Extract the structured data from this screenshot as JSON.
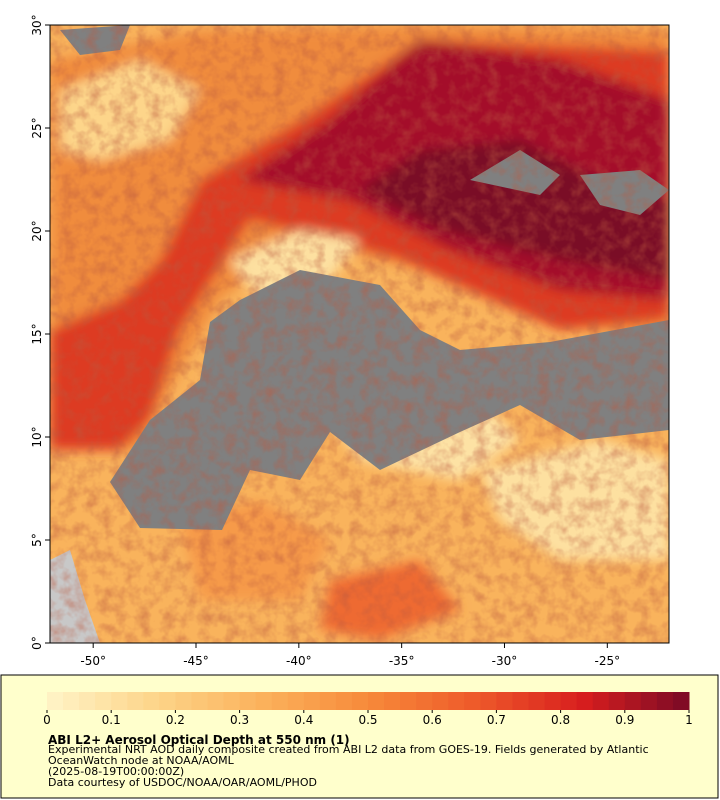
{
  "chart_data": {
    "type": "map",
    "title": "ABI L2+ Aerosol Optical Depth at 550 nm (1)",
    "description": [
      "Experimental NRT AOD daily composite created from ABI L2 data from GOES-19. Fields generated by Atlantic",
      "OceanWatch node at NOAA/AOML",
      "(2025-08-19T00:00:00Z)",
      "Data courtesy of USDOC/NOAA/OAR/AOML/PHOD"
    ],
    "xlim": [
      -52.1,
      -22.0
    ],
    "ylim": [
      0,
      30
    ],
    "xticks": [
      {
        "value": -50,
        "label": "-50°"
      },
      {
        "value": -45,
        "label": "-45°"
      },
      {
        "value": -40,
        "label": "-40°"
      },
      {
        "value": -35,
        "label": "-35°"
      },
      {
        "value": -30,
        "label": "-30°"
      },
      {
        "value": -25,
        "label": "-25°"
      }
    ],
    "yticks": [
      {
        "value": 0,
        "label": "0°"
      },
      {
        "value": 5,
        "label": "5°"
      },
      {
        "value": 10,
        "label": "10°"
      },
      {
        "value": 15,
        "label": "15°"
      },
      {
        "value": 20,
        "label": "20°"
      },
      {
        "value": 25,
        "label": "25°"
      },
      {
        "value": 30,
        "label": "30°"
      }
    ],
    "colorbar": {
      "lim": [
        0,
        1
      ],
      "ticks": [
        0,
        0.1,
        0.2,
        0.3,
        0.4,
        0.5,
        0.6,
        0.7,
        0.8,
        0.9,
        1
      ],
      "colors": [
        "#fff4c8",
        "#fdd58a",
        "#fbb25c",
        "#f78a3a",
        "#ee5a2a",
        "#d81e1e",
        "#7a0a26"
      ]
    }
  }
}
